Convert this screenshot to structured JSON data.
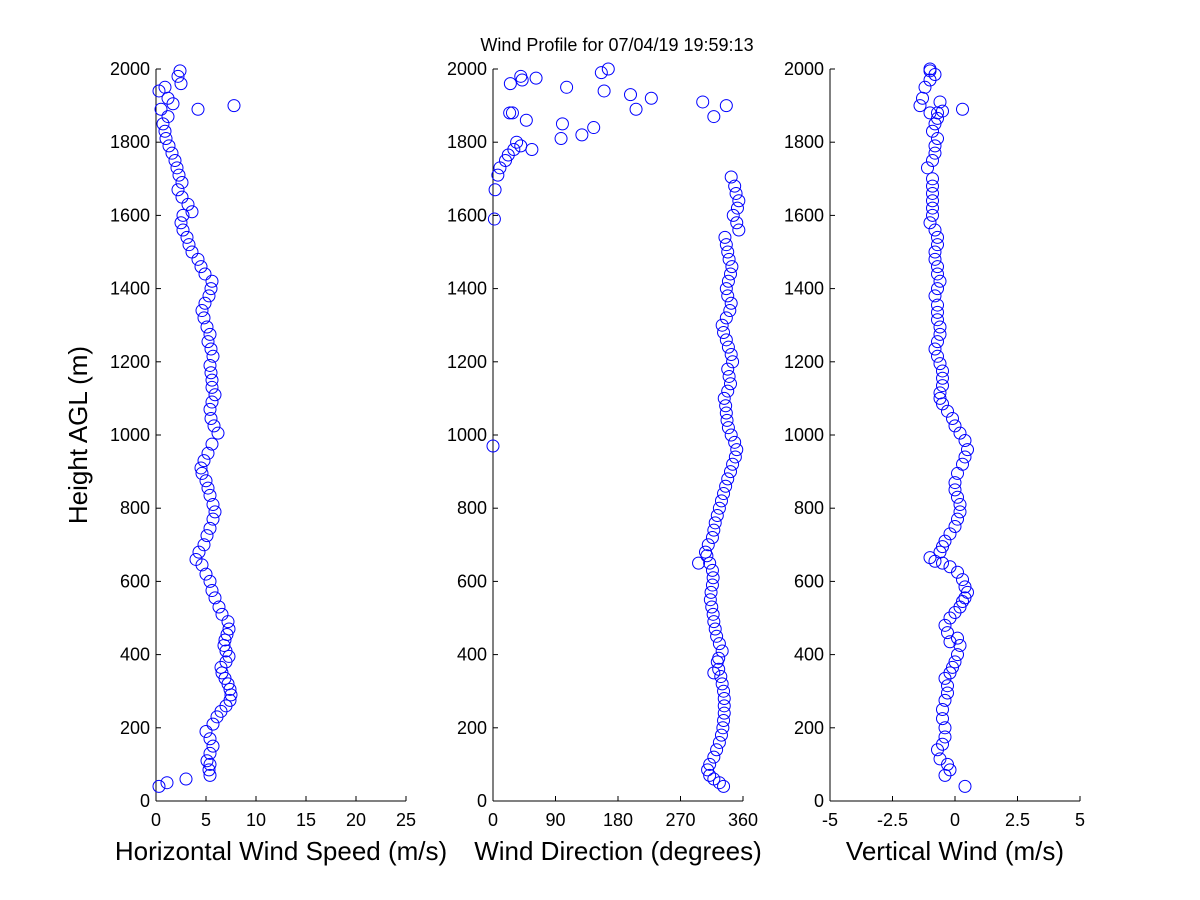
{
  "figure": {
    "title": "Wind Profile for  07/04/19 19:59:13",
    "marker_color": "#0000ff",
    "axis_color": "#000000",
    "background": "#ffffff"
  },
  "chart_data": [
    {
      "type": "scatter",
      "title": "",
      "xlabel": "Horizontal Wind Speed (m/s)",
      "ylabel": "Height AGL (m)",
      "xlim": [
        0,
        25
      ],
      "ylim": [
        0,
        2000
      ],
      "xticks": [
        0,
        5,
        10,
        15,
        20,
        25
      ],
      "xtick_labels": [
        "0",
        "5",
        "10",
        "15",
        "20",
        "25"
      ],
      "yticks": [
        0,
        200,
        400,
        600,
        800,
        1000,
        1200,
        1400,
        1600,
        1800,
        2000
      ],
      "ytick_labels": [
        "0",
        "200",
        "400",
        "600",
        "800",
        "1000",
        "1200",
        "1400",
        "1600",
        "1800",
        "2000"
      ],
      "grid": false,
      "marker": "circle-open",
      "series": [
        {
          "x": [
            0.3,
            1.1,
            3.0,
            5.4,
            5.3,
            5.4,
            5.1,
            5.4,
            5.7,
            5.4,
            5.0,
            5.7,
            6.1,
            6.5,
            7.0,
            7.4,
            7.5,
            7.4,
            7.2,
            6.9,
            6.6,
            6.5,
            7.0,
            7.3,
            7.0,
            6.8,
            6.9,
            7.1,
            7.3,
            7.2,
            6.6,
            6.3,
            5.9,
            5.6,
            5.4,
            5.0,
            4.6,
            4.0,
            4.3,
            4.8,
            5.1,
            5.4,
            5.7,
            5.9,
            5.7,
            5.4,
            5.2,
            5.0,
            4.6,
            4.5,
            4.8,
            5.2,
            5.6,
            6.2,
            5.8,
            5.5,
            5.4,
            5.6,
            5.9,
            5.6,
            5.6,
            5.5,
            5.4,
            5.7,
            5.5,
            5.2,
            5.4,
            5.1,
            4.8,
            4.6,
            4.9,
            5.3,
            5.5,
            5.6,
            4.9,
            4.5,
            4.2,
            3.6,
            3.3,
            3.1,
            2.7,
            2.5,
            2.7,
            3.6,
            3.2,
            2.6,
            2.2,
            2.6,
            2.3,
            2.1,
            1.9,
            1.6,
            1.3,
            1.0,
            0.9,
            0.7,
            1.2,
            0.5,
            1.7,
            4.2,
            7.8,
            0.3,
            0.9,
            1.2,
            2.5,
            2.2,
            2.4
          ],
          "y": [
            40,
            50,
            60,
            70,
            85,
            100,
            110,
            130,
            150,
            170,
            190,
            210,
            230,
            245,
            260,
            275,
            290,
            305,
            320,
            335,
            350,
            365,
            380,
            395,
            410,
            425,
            440,
            455,
            470,
            490,
            510,
            530,
            555,
            575,
            600,
            620,
            645,
            660,
            680,
            700,
            725,
            745,
            770,
            790,
            810,
            835,
            855,
            875,
            895,
            910,
            930,
            950,
            975,
            1005,
            1025,
            1045,
            1070,
            1090,
            1110,
            1130,
            1150,
            1170,
            1190,
            1215,
            1235,
            1255,
            1275,
            1295,
            1320,
            1340,
            1360,
            1380,
            1400,
            1420,
            1440,
            1460,
            1480,
            1500,
            1520,
            1540,
            1560,
            1580,
            1600,
            1610,
            1630,
            1650,
            1670,
            1690,
            1710,
            1730,
            1750,
            1770,
            1790,
            1810,
            1830,
            1850,
            1870,
            1890,
            1905,
            1890,
            1900,
            1940,
            1950,
            1920,
            1960,
            1980,
            1995
          ]
        }
      ]
    },
    {
      "type": "scatter",
      "title": "",
      "xlabel": "Wind Direction (degrees)",
      "ylabel": "",
      "xlim": [
        0,
        360
      ],
      "ylim": [
        0,
        2000
      ],
      "xticks": [
        0,
        90,
        180,
        270,
        360
      ],
      "xtick_labels": [
        "0",
        "90",
        "180",
        "270",
        "360"
      ],
      "yticks": [
        0,
        200,
        400,
        600,
        800,
        1000,
        1200,
        1400,
        1600,
        1800,
        2000
      ],
      "ytick_labels": [
        "0",
        "200",
        "400",
        "600",
        "800",
        "1000",
        "1200",
        "1400",
        "1600",
        "1800",
        "2000"
      ],
      "grid": false,
      "marker": "circle-open",
      "series": [
        {
          "x": [
            332,
            326,
            318,
            312,
            309,
            312,
            318,
            322,
            326,
            329,
            331,
            332,
            333,
            333,
            333,
            332,
            330,
            328,
            325,
            323,
            318,
            325,
            330,
            326,
            322,
            320,
            318,
            317,
            315,
            313,
            314,
            316,
            317,
            316,
            312,
            308,
            296,
            306,
            310,
            316,
            318,
            320,
            323,
            326,
            329,
            332,
            335,
            338,
            342,
            345,
            349,
            351,
            348,
            343,
            339,
            337,
            336,
            335,
            333,
            338,
            342,
            340,
            338,
            345,
            343,
            339,
            336,
            332,
            330,
            336,
            341,
            343,
            338,
            336,
            339,
            342,
            344,
            340,
            338,
            336,
            334,
            354,
            351,
            346,
            352,
            354,
            350,
            348,
            343,
            2,
            3,
            7,
            10,
            18,
            22,
            30,
            34,
            40,
            28,
            48,
            56,
            98,
            100,
            128,
            145,
            106,
            25,
            40,
            62,
            24,
            42,
            156,
            160,
            166,
            198,
            206,
            228,
            336,
            302,
            318
          ],
          "y": [
            40,
            50,
            60,
            70,
            85,
            100,
            120,
            140,
            160,
            180,
            200,
            220,
            240,
            260,
            280,
            300,
            320,
            340,
            360,
            380,
            350,
            390,
            410,
            430,
            450,
            470,
            490,
            510,
            530,
            550,
            570,
            590,
            610,
            630,
            650,
            670,
            650,
            680,
            700,
            720,
            740,
            760,
            780,
            800,
            820,
            840,
            860,
            880,
            900,
            920,
            940,
            960,
            980,
            1000,
            1020,
            1040,
            1060,
            1080,
            1100,
            1120,
            1140,
            1160,
            1180,
            1200,
            1220,
            1240,
            1260,
            1280,
            1300,
            1320,
            1340,
            1360,
            1380,
            1400,
            1420,
            1440,
            1460,
            1480,
            1500,
            1520,
            1540,
            1560,
            1580,
            1600,
            1620,
            1640,
            1660,
            1680,
            1705,
            1590,
            1670,
            1710,
            1730,
            1750,
            1765,
            1780,
            1800,
            1790,
            1880,
            1860,
            1780,
            1810,
            1850,
            1820,
            1840,
            1950,
            1960,
            1980,
            1975,
            1880,
            1970,
            1990,
            1940,
            2000,
            1930,
            1890,
            1920,
            1900,
            1910,
            1870
          ],
          "outlier_note": ""
        },
        {
          "x": [
            0
          ],
          "y": [
            970
          ]
        }
      ]
    },
    {
      "type": "scatter",
      "title": "",
      "xlabel": "Vertical Wind (m/s)",
      "ylabel": "",
      "xlim": [
        -5,
        5
      ],
      "ylim": [
        0,
        2000
      ],
      "xticks": [
        -5,
        -2.5,
        0,
        2.5,
        5
      ],
      "xtick_labels": [
        "-5",
        "-2.5",
        "0",
        "2.5",
        "5"
      ],
      "yticks": [
        0,
        200,
        400,
        600,
        800,
        1000,
        1200,
        1400,
        1600,
        1800,
        2000
      ],
      "ytick_labels": [
        "0",
        "200",
        "400",
        "600",
        "800",
        "1000",
        "1200",
        "1400",
        "1600",
        "1800",
        "2000"
      ],
      "grid": false,
      "marker": "circle-open",
      "series": [
        {
          "x": [
            0.4,
            -0.4,
            -0.2,
            -0.3,
            -0.6,
            -0.7,
            -0.5,
            -0.4,
            -0.4,
            -0.5,
            -0.5,
            -0.4,
            -0.3,
            -0.3,
            -0.4,
            -0.2,
            -0.1,
            0.0,
            0.1,
            0.2,
            0.1,
            -0.2,
            -0.3,
            -0.4,
            -0.2,
            0.0,
            0.2,
            0.3,
            0.4,
            0.5,
            0.4,
            0.3,
            0.1,
            -0.2,
            -0.5,
            -0.8,
            -1.0,
            -0.6,
            -0.5,
            -0.4,
            -0.2,
            0.0,
            0.1,
            0.2,
            0.2,
            0.1,
            0.0,
            0.0,
            0.1,
            0.3,
            0.4,
            0.5,
            0.4,
            0.2,
            0.0,
            -0.1,
            -0.3,
            -0.5,
            -0.6,
            -0.6,
            -0.5,
            -0.5,
            -0.5,
            -0.6,
            -0.7,
            -0.8,
            -0.7,
            -0.6,
            -0.6,
            -0.7,
            -0.7,
            -0.7,
            -0.8,
            -0.7,
            -0.6,
            -0.7,
            -0.7,
            -0.8,
            -0.8,
            -0.7,
            -0.7,
            -0.8,
            -1.0,
            -0.9,
            -0.9,
            -0.9,
            -0.9,
            -0.9,
            -0.9,
            -1.1,
            -0.9,
            -0.8,
            -0.8,
            -0.7,
            -0.9,
            -0.8,
            -0.7,
            -1.0,
            -0.7,
            -0.5,
            -1.4,
            0.3,
            -0.6,
            -1.3,
            -1.2,
            -1.0,
            -0.8,
            -1.0,
            -1.0
          ],
          "y": [
            40,
            70,
            85,
            100,
            115,
            140,
            155,
            175,
            200,
            225,
            250,
            275,
            295,
            315,
            335,
            350,
            365,
            380,
            400,
            425,
            445,
            435,
            460,
            480,
            500,
            515,
            530,
            545,
            555,
            570,
            585,
            605,
            625,
            640,
            650,
            655,
            665,
            680,
            695,
            710,
            730,
            750,
            770,
            790,
            810,
            830,
            850,
            870,
            895,
            920,
            940,
            960,
            985,
            1005,
            1025,
            1045,
            1065,
            1085,
            1100,
            1115,
            1135,
            1155,
            1175,
            1195,
            1215,
            1235,
            1255,
            1275,
            1295,
            1315,
            1335,
            1355,
            1380,
            1400,
            1420,
            1440,
            1460,
            1480,
            1500,
            1520,
            1540,
            1560,
            1580,
            1600,
            1620,
            1640,
            1660,
            1680,
            1700,
            1730,
            1750,
            1770,
            1790,
            1810,
            1830,
            1850,
            1865,
            1880,
            1880,
            1885,
            1900,
            1890,
            1910,
            1920,
            1950,
            1970,
            1985,
            2000,
            1995
          ]
        }
      ]
    }
  ]
}
